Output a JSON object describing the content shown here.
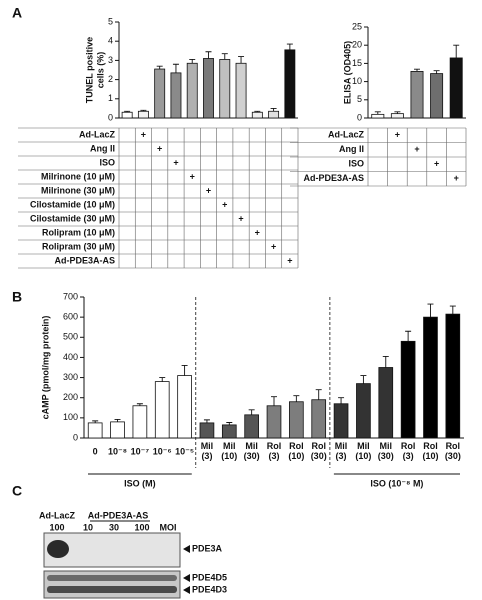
{
  "panel_labels": [
    "A",
    "B",
    "C"
  ],
  "chart_data": [
    {
      "type": "bar",
      "y_label": "TUNEL positive cells (%)",
      "ylim": [
        0,
        5
      ],
      "yticks": [
        0,
        1,
        2,
        3,
        4,
        5
      ],
      "values": [
        0.3,
        0.35,
        2.55,
        2.35,
        2.85,
        3.1,
        3.05,
        2.85,
        0.3,
        0.35,
        3.55
      ],
      "errors": [
        0.05,
        0.05,
        0.15,
        0.45,
        0.2,
        0.35,
        0.3,
        0.35,
        0.05,
        0.15,
        0.3
      ],
      "colors": [
        "#ffffff",
        "#f2f2f2",
        "#9a9a9a",
        "#8a8a8a",
        "#b0b0b0",
        "#7a7a7a",
        "#c0c0c0",
        "#d0d0d0",
        "#eeeeee",
        "#e0e0e0",
        "#111111"
      ],
      "table": {
        "rows": [
          {
            "label": "Ad-LacZ",
            "cells": [
              null,
              "+",
              null,
              null,
              null,
              null,
              null,
              null,
              null,
              null,
              null
            ]
          },
          {
            "label": "Ang II",
            "cells": [
              null,
              null,
              "+",
              null,
              null,
              null,
              null,
              null,
              null,
              null,
              null
            ]
          },
          {
            "label": "ISO",
            "cells": [
              null,
              null,
              null,
              "+",
              null,
              null,
              null,
              null,
              null,
              null,
              null
            ]
          },
          {
            "label": "Milrinone (10 μM)",
            "cells": [
              null,
              null,
              null,
              null,
              "+",
              null,
              null,
              null,
              null,
              null,
              null
            ]
          },
          {
            "label": "Milrinone (30 μM)",
            "cells": [
              null,
              null,
              null,
              null,
              null,
              "+",
              null,
              null,
              null,
              null,
              null
            ]
          },
          {
            "label": "Cilostamide (10 μM)",
            "cells": [
              null,
              null,
              null,
              null,
              null,
              null,
              "+",
              null,
              null,
              null,
              null
            ]
          },
          {
            "label": "Cilostamide (30 μM)",
            "cells": [
              null,
              null,
              null,
              null,
              null,
              null,
              null,
              "+",
              null,
              null,
              null
            ]
          },
          {
            "label": "Rolipram (10 μM)",
            "cells": [
              null,
              null,
              null,
              null,
              null,
              null,
              null,
              null,
              "+",
              null,
              null
            ]
          },
          {
            "label": "Rolipram (30 μM)",
            "cells": [
              null,
              null,
              null,
              null,
              null,
              null,
              null,
              null,
              null,
              "+",
              null
            ]
          },
          {
            "label": "Ad-PDE3A-AS",
            "cells": [
              null,
              null,
              null,
              null,
              null,
              null,
              null,
              null,
              null,
              null,
              "+"
            ]
          }
        ]
      }
    },
    {
      "type": "bar",
      "y_label": "ELISA (OD405)",
      "ylim": [
        0,
        25
      ],
      "yticks": [
        0,
        5,
        10,
        15,
        20,
        25
      ],
      "values": [
        1.0,
        1.2,
        12.8,
        12.2,
        16.5
      ],
      "errors": [
        0.7,
        0.5,
        0.6,
        0.8,
        3.5
      ],
      "colors": [
        "#ffffff",
        "#f2f2f2",
        "#8a8a8a",
        "#6e6e6e",
        "#111111"
      ],
      "table": {
        "rows": [
          {
            "label": "Ad-LacZ",
            "cells": [
              null,
              "+",
              null,
              null,
              null
            ]
          },
          {
            "label": "Ang II",
            "cells": [
              null,
              null,
              "+",
              null,
              null
            ]
          },
          {
            "label": "ISO",
            "cells": [
              null,
              null,
              null,
              "+",
              null
            ]
          },
          {
            "label": "Ad-PDE3A-AS",
            "cells": [
              null,
              null,
              null,
              null,
              "+"
            ]
          }
        ]
      }
    },
    {
      "type": "bar",
      "y_label": "cAMP (pmol/mg protein)",
      "ylim": [
        0,
        700
      ],
      "yticks": [
        0,
        100,
        200,
        300,
        400,
        500,
        600,
        700
      ],
      "categories": [
        "0",
        "10⁻⁸",
        "10⁻⁷",
        "10⁻⁶",
        "10⁻⁵",
        "Mil (3)",
        "Mil (10)",
        "Mil (30)",
        "Rol (3)",
        "Rol (10)",
        "Rol (30)",
        "Mil (3)",
        "Mil (10)",
        "Mil (30)",
        "Rol (3)",
        "Rol (10)",
        "Rol (30)"
      ],
      "values": [
        75,
        80,
        160,
        280,
        310,
        75,
        65,
        115,
        160,
        180,
        190,
        170,
        270,
        350,
        480,
        600,
        615
      ],
      "errors": [
        10,
        12,
        10,
        20,
        50,
        15,
        12,
        25,
        45,
        30,
        50,
        30,
        40,
        55,
        50,
        65,
        40
      ],
      "colors": [
        "#ffffff",
        "#ffffff",
        "#ffffff",
        "#ffffff",
        "#ffffff",
        "#555555",
        "#555555",
        "#555555",
        "#7d7d7d",
        "#7d7d7d",
        "#7d7d7d",
        "#333333",
        "#333333",
        "#333333",
        "#000000",
        "#000000",
        "#000000"
      ],
      "group_labels": [
        "ISO (M)",
        "ISO (10⁻⁸ M)"
      ]
    }
  ],
  "blot": {
    "group_labels": [
      "Ad-LacZ",
      "Ad-PDE3A-AS"
    ],
    "lanes": [
      "100",
      "10",
      "30",
      "100",
      "MOI"
    ],
    "bands": [
      "PDE3A",
      "PDE4D5",
      "PDE4D3"
    ]
  }
}
